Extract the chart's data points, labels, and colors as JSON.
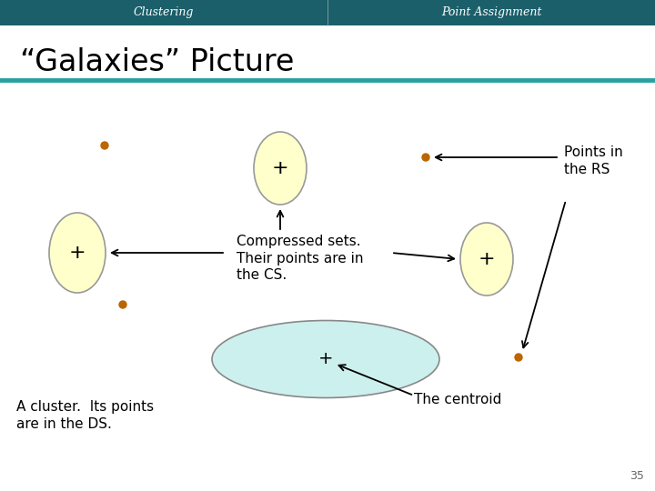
{
  "title": "“Galaxies” Picture",
  "header_left": "Clustering",
  "header_right": "Point Assignment",
  "header_bg": "#1a5f6a",
  "header_text_color": "#ffffff",
  "slide_bg": "#ffffff",
  "content_bg": "#ffffff",
  "teal_line_color": "#2aa0a0",
  "ellipse_fill_yellow": "#ffffcc",
  "ellipse_edge_yellow": "#999999",
  "ellipse_fill_teal": "#ccf0ee",
  "ellipse_edge_teal": "#888888",
  "dot_color": "#bb6600",
  "cross_color": "#000000",
  "arrow_color": "#000000",
  "text_color": "#000000",
  "page_number": "35",
  "annotations": {
    "points_in_rs": "Points in\nthe RS",
    "compressed_sets": "Compressed sets.\nTheir points are in\nthe CS.",
    "cluster_ds": "A cluster.  Its points\nare in the DS.",
    "centroid": "The centroid"
  }
}
